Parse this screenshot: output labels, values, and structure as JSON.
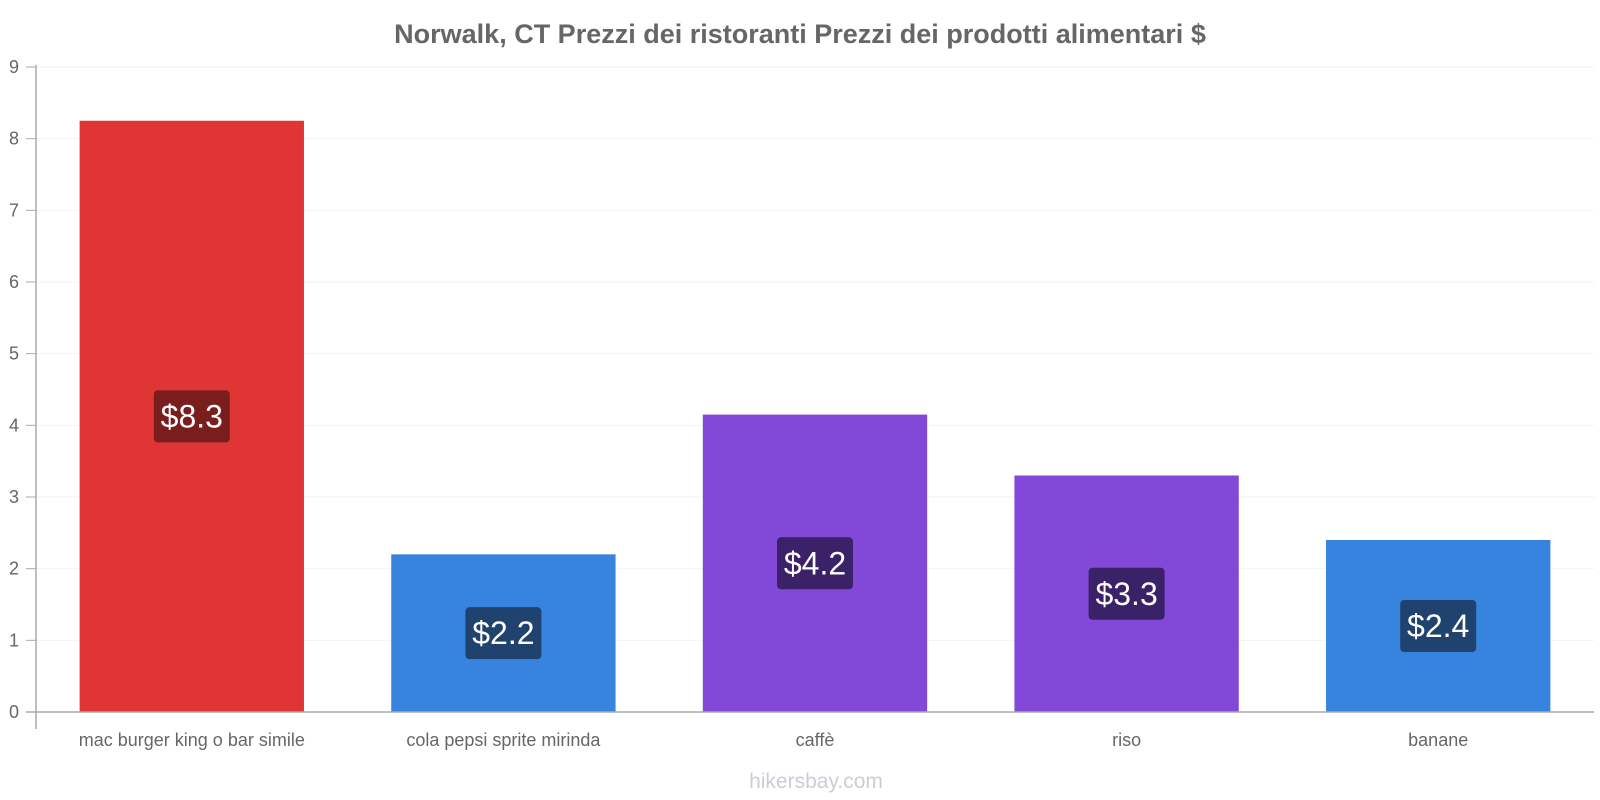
{
  "chart_data": {
    "type": "bar",
    "title": "Norwalk, CT Prezzi dei ristoranti Prezzi dei prodotti alimentari $",
    "categories": [
      "mac burger king o bar simile",
      "cola pepsi sprite mirinda",
      "caffè",
      "riso",
      "banane"
    ],
    "values": [
      8.25,
      2.2,
      4.15,
      3.3,
      2.4
    ],
    "data_labels": [
      "$8.3",
      "$2.2",
      "$4.2",
      "$3.3",
      "$2.4"
    ],
    "bar_colors": [
      "#e03535",
      "#3784df",
      "#8249d8",
      "#8249d8",
      "#3784df"
    ],
    "label_colors": [
      "#7a1d1d",
      "#1f426e",
      "#3b2168",
      "#3b2168",
      "#1f426e"
    ],
    "ylim": [
      0,
      9
    ],
    "yticks": [
      "0",
      "1",
      "2",
      "3",
      "4",
      "5",
      "6",
      "7",
      "8",
      "9"
    ],
    "xlabel": "",
    "ylabel": "",
    "grid": true,
    "legend": "none"
  },
  "watermark": "hikersbay.com"
}
